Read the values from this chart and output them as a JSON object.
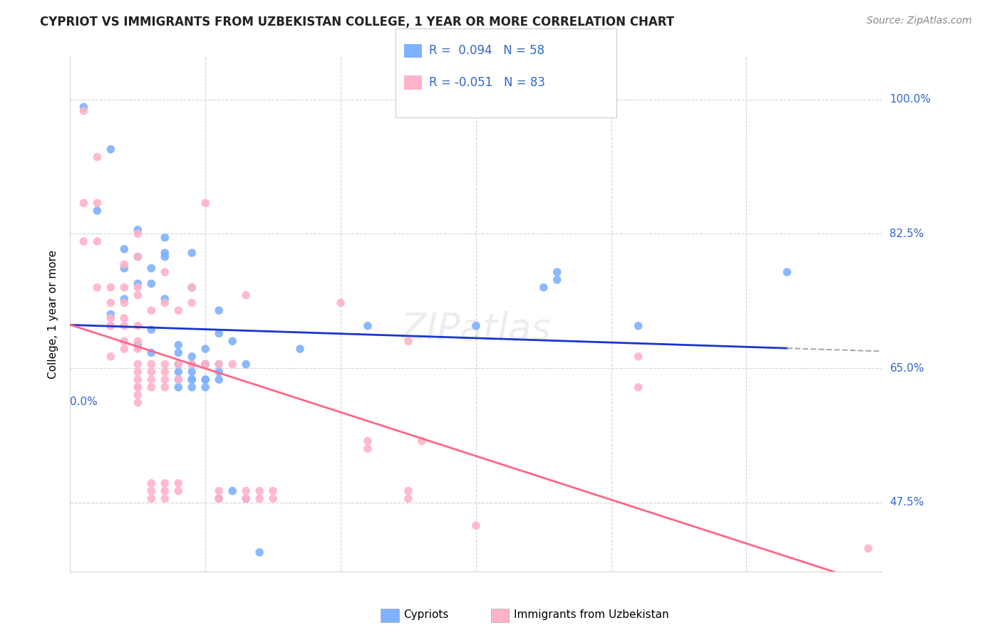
{
  "title": "CYPRIOT VS IMMIGRANTS FROM UZBEKISTAN COLLEGE, 1 YEAR OR MORE CORRELATION CHART",
  "source": "Source: ZipAtlas.com",
  "ylabel": "College, 1 year or more",
  "ytick_labels": [
    "47.5%",
    "65.0%",
    "82.5%",
    "100.0%"
  ],
  "ytick_values": [
    0.475,
    0.65,
    0.825,
    1.0
  ],
  "xlim": [
    0.0,
    0.06
  ],
  "ylim": [
    0.385,
    1.055
  ],
  "legend_line1": "R =  0.094   N = 58",
  "legend_line2": "R = -0.051   N = 83",
  "color_blue": "#7EB2FF",
  "color_pink": "#FFB3C8",
  "line_blue": "#1A35CC",
  "line_pink": "#FF6688",
  "blue_points": [
    [
      0.001,
      0.99
    ],
    [
      0.002,
      0.855
    ],
    [
      0.003,
      0.935
    ],
    [
      0.003,
      0.72
    ],
    [
      0.004,
      0.78
    ],
    [
      0.004,
      0.74
    ],
    [
      0.004,
      0.805
    ],
    [
      0.005,
      0.83
    ],
    [
      0.005,
      0.795
    ],
    [
      0.005,
      0.76
    ],
    [
      0.005,
      0.68
    ],
    [
      0.006,
      0.78
    ],
    [
      0.006,
      0.76
    ],
    [
      0.006,
      0.7
    ],
    [
      0.006,
      0.67
    ],
    [
      0.007,
      0.82
    ],
    [
      0.007,
      0.8
    ],
    [
      0.007,
      0.795
    ],
    [
      0.007,
      0.74
    ],
    [
      0.008,
      0.68
    ],
    [
      0.008,
      0.67
    ],
    [
      0.008,
      0.655
    ],
    [
      0.008,
      0.645
    ],
    [
      0.008,
      0.635
    ],
    [
      0.008,
      0.625
    ],
    [
      0.009,
      0.8
    ],
    [
      0.009,
      0.755
    ],
    [
      0.009,
      0.665
    ],
    [
      0.009,
      0.655
    ],
    [
      0.009,
      0.645
    ],
    [
      0.009,
      0.635
    ],
    [
      0.009,
      0.635
    ],
    [
      0.009,
      0.625
    ],
    [
      0.01,
      0.675
    ],
    [
      0.01,
      0.655
    ],
    [
      0.01,
      0.655
    ],
    [
      0.01,
      0.635
    ],
    [
      0.01,
      0.635
    ],
    [
      0.01,
      0.625
    ],
    [
      0.011,
      0.725
    ],
    [
      0.011,
      0.695
    ],
    [
      0.011,
      0.655
    ],
    [
      0.011,
      0.645
    ],
    [
      0.011,
      0.635
    ],
    [
      0.011,
      0.48
    ],
    [
      0.012,
      0.685
    ],
    [
      0.012,
      0.49
    ],
    [
      0.013,
      0.655
    ],
    [
      0.013,
      0.48
    ],
    [
      0.014,
      0.41
    ],
    [
      0.017,
      0.675
    ],
    [
      0.022,
      0.705
    ],
    [
      0.03,
      0.705
    ],
    [
      0.035,
      0.755
    ],
    [
      0.036,
      0.775
    ],
    [
      0.036,
      0.765
    ],
    [
      0.042,
      0.705
    ],
    [
      0.053,
      0.775
    ]
  ],
  "pink_points": [
    [
      0.001,
      0.985
    ],
    [
      0.001,
      0.865
    ],
    [
      0.001,
      0.815
    ],
    [
      0.002,
      0.925
    ],
    [
      0.002,
      0.865
    ],
    [
      0.002,
      0.815
    ],
    [
      0.002,
      0.755
    ],
    [
      0.003,
      0.755
    ],
    [
      0.003,
      0.735
    ],
    [
      0.003,
      0.715
    ],
    [
      0.003,
      0.705
    ],
    [
      0.003,
      0.705
    ],
    [
      0.003,
      0.665
    ],
    [
      0.004,
      0.785
    ],
    [
      0.004,
      0.755
    ],
    [
      0.004,
      0.735
    ],
    [
      0.004,
      0.715
    ],
    [
      0.004,
      0.705
    ],
    [
      0.004,
      0.685
    ],
    [
      0.004,
      0.675
    ],
    [
      0.005,
      0.825
    ],
    [
      0.005,
      0.795
    ],
    [
      0.005,
      0.755
    ],
    [
      0.005,
      0.745
    ],
    [
      0.005,
      0.705
    ],
    [
      0.005,
      0.685
    ],
    [
      0.005,
      0.675
    ],
    [
      0.005,
      0.655
    ],
    [
      0.005,
      0.645
    ],
    [
      0.005,
      0.635
    ],
    [
      0.005,
      0.625
    ],
    [
      0.005,
      0.625
    ],
    [
      0.005,
      0.615
    ],
    [
      0.005,
      0.605
    ],
    [
      0.006,
      0.725
    ],
    [
      0.006,
      0.655
    ],
    [
      0.006,
      0.645
    ],
    [
      0.006,
      0.635
    ],
    [
      0.006,
      0.625
    ],
    [
      0.006,
      0.5
    ],
    [
      0.006,
      0.49
    ],
    [
      0.006,
      0.48
    ],
    [
      0.007,
      0.775
    ],
    [
      0.007,
      0.735
    ],
    [
      0.007,
      0.655
    ],
    [
      0.007,
      0.645
    ],
    [
      0.007,
      0.635
    ],
    [
      0.007,
      0.625
    ],
    [
      0.007,
      0.5
    ],
    [
      0.007,
      0.49
    ],
    [
      0.007,
      0.48
    ],
    [
      0.008,
      0.725
    ],
    [
      0.008,
      0.655
    ],
    [
      0.008,
      0.635
    ],
    [
      0.008,
      0.5
    ],
    [
      0.008,
      0.49
    ],
    [
      0.009,
      0.755
    ],
    [
      0.009,
      0.735
    ],
    [
      0.009,
      0.655
    ],
    [
      0.01,
      0.865
    ],
    [
      0.01,
      0.655
    ],
    [
      0.011,
      0.655
    ],
    [
      0.011,
      0.49
    ],
    [
      0.011,
      0.48
    ],
    [
      0.012,
      0.655
    ],
    [
      0.013,
      0.745
    ],
    [
      0.013,
      0.49
    ],
    [
      0.013,
      0.48
    ],
    [
      0.014,
      0.49
    ],
    [
      0.014,
      0.48
    ],
    [
      0.015,
      0.49
    ],
    [
      0.015,
      0.48
    ],
    [
      0.02,
      0.735
    ],
    [
      0.022,
      0.555
    ],
    [
      0.022,
      0.545
    ],
    [
      0.025,
      0.685
    ],
    [
      0.025,
      0.49
    ],
    [
      0.025,
      0.48
    ],
    [
      0.026,
      0.555
    ],
    [
      0.03,
      0.445
    ],
    [
      0.042,
      0.665
    ],
    [
      0.042,
      0.625
    ],
    [
      0.059,
      0.415
    ]
  ]
}
